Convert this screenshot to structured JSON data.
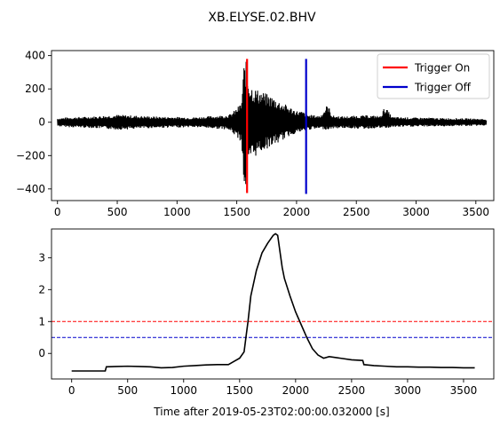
{
  "figure": {
    "title": "XB.ELYSE.02.BHV",
    "xlabel": "Time after 2019-05-23T02:00:00.032000 [s]"
  },
  "chart_data": [
    {
      "type": "line",
      "title": "",
      "xlabel": "",
      "ylabel": "",
      "xlim": [
        -50,
        3650
      ],
      "ylim": [
        -470,
        430
      ],
      "x_ticks": [
        0,
        500,
        1000,
        1500,
        2000,
        2500,
        3000,
        3500
      ],
      "y_ticks": [
        -400,
        -200,
        0,
        200,
        400
      ],
      "grid": false,
      "legend": "top-right",
      "series": [
        {
          "name": "",
          "color": "#000000",
          "description": "waveform envelope",
          "x": [
            0,
            100,
            200,
            300,
            400,
            500,
            600,
            700,
            800,
            900,
            1000,
            1100,
            1200,
            1300,
            1400,
            1450,
            1500,
            1540,
            1560,
            1575,
            1590,
            1610,
            1630,
            1650,
            1700,
            1750,
            1800,
            1850,
            1900,
            1950,
            2000,
            2050,
            2080,
            2100,
            2200,
            2260,
            2300,
            2400,
            2500,
            2600,
            2700,
            2740,
            2800,
            2900,
            3000,
            3100,
            3200,
            3300,
            3400,
            3500,
            3590
          ],
          "upper": [
            25,
            30,
            32,
            35,
            40,
            45,
            42,
            38,
            35,
            33,
            32,
            30,
            32,
            38,
            42,
            50,
            85,
            120,
            350,
            380,
            300,
            240,
            220,
            205,
            190,
            170,
            155,
            130,
            110,
            90,
            70,
            65,
            55,
            45,
            40,
            110,
            40,
            35,
            40,
            42,
            38,
            95,
            32,
            30,
            28,
            28,
            25,
            25,
            24,
            22,
            20
          ],
          "lower": [
            -25,
            -30,
            -32,
            -35,
            -40,
            -45,
            -42,
            -38,
            -35,
            -33,
            -32,
            -30,
            -32,
            -38,
            -42,
            -55,
            -90,
            -120,
            -395,
            -410,
            -320,
            -250,
            -225,
            -210,
            -180,
            -160,
            -140,
            -125,
            -100,
            -80,
            -65,
            -60,
            -50,
            -45,
            -40,
            -45,
            -38,
            -35,
            -38,
            -40,
            -35,
            -38,
            -30,
            -28,
            -27,
            -26,
            -25,
            -24,
            -23,
            -22,
            -20
          ]
        }
      ],
      "markers": [
        {
          "name": "Trigger On",
          "color": "#ff0000",
          "x": 1586,
          "y_range": [
            -425,
            380
          ]
        },
        {
          "name": "Trigger Off",
          "color": "#0000cc",
          "x": 2080,
          "y_range": [
            -430,
            380
          ]
        }
      ]
    },
    {
      "type": "line",
      "title": "",
      "xlabel": "Time after 2019-05-23T02:00:00.032000 [s]",
      "ylabel": "",
      "xlim": [
        -180,
        3770
      ],
      "ylim": [
        -0.8,
        3.9
      ],
      "x_ticks": [
        0,
        500,
        1000,
        1500,
        2000,
        2500,
        3000,
        3500
      ],
      "y_ticks": [
        0,
        1,
        2,
        3
      ],
      "grid": false,
      "series": [
        {
          "name": "",
          "color": "#000000",
          "description": "characteristic function",
          "x": [
            0,
            100,
            200,
            300,
            310,
            400,
            500,
            600,
            700,
            800,
            900,
            1000,
            1100,
            1200,
            1300,
            1400,
            1450,
            1500,
            1540,
            1560,
            1575,
            1600,
            1650,
            1700,
            1750,
            1800,
            1820,
            1840,
            1860,
            1880,
            1900,
            1950,
            2000,
            2050,
            2100,
            2150,
            2200,
            2250,
            2300,
            2400,
            2500,
            2600,
            2610,
            2700,
            2800,
            2900,
            3000,
            3100,
            3200,
            3300,
            3400,
            3500,
            3600
          ],
          "y": [
            -0.55,
            -0.55,
            -0.55,
            -0.55,
            -0.42,
            -0.41,
            -0.4,
            -0.41,
            -0.42,
            -0.45,
            -0.44,
            -0.4,
            -0.38,
            -0.36,
            -0.35,
            -0.35,
            -0.25,
            -0.15,
            0.05,
            0.6,
            1.0,
            1.8,
            2.6,
            3.15,
            3.45,
            3.7,
            3.75,
            3.7,
            3.2,
            2.7,
            2.35,
            1.8,
            1.3,
            0.9,
            0.5,
            0.15,
            -0.05,
            -0.15,
            -0.1,
            -0.15,
            -0.2,
            -0.22,
            -0.35,
            -0.38,
            -0.4,
            -0.42,
            -0.42,
            -0.43,
            -0.43,
            -0.44,
            -0.44,
            -0.45,
            -0.45
          ]
        }
      ],
      "thresholds": [
        {
          "name": "",
          "color": "#ff0000",
          "value": 1.0,
          "style": "dashed"
        },
        {
          "name": "",
          "color": "#0000cc",
          "value": 0.5,
          "style": "dashed"
        }
      ]
    }
  ]
}
